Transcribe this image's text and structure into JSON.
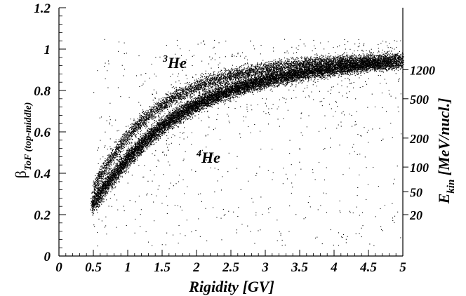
{
  "chart_data": {
    "type": "scatter",
    "xlabel": "Rigidity [GV]",
    "ylabel": {
      "main": "β",
      "sub": "ToF (top-middle)"
    },
    "right_axis_label": {
      "main": "E",
      "sub": "kin",
      "unit": " [MeV/nucl.]"
    },
    "xlim": [
      0,
      5
    ],
    "ylim": [
      0,
      1.2
    ],
    "x_ticks": [
      0,
      0.5,
      1,
      1.5,
      2,
      2.5,
      3,
      3.5,
      4,
      4.5,
      5
    ],
    "x_tick_labels": [
      "0",
      "0.5",
      "1",
      "1.5",
      "2",
      "2.5",
      "3",
      "3.5",
      "4",
      "4.5",
      "5"
    ],
    "y_ticks": [
      0,
      0.2,
      0.4,
      0.6,
      0.8,
      1.0,
      1.2
    ],
    "y_tick_labels": [
      "0",
      "0.2",
      "0.4",
      "0.6",
      "0.8",
      "1",
      "1.2"
    ],
    "right_ticks": [
      {
        "label": "1200",
        "beta": 0.9
      },
      {
        "label": "500",
        "beta": 0.76
      },
      {
        "label": "200",
        "beta": 0.57
      },
      {
        "label": "100",
        "beta": 0.43
      },
      {
        "label": "50",
        "beta": 0.31
      },
      {
        "label": "20",
        "beta": 0.2
      }
    ],
    "grid": false,
    "series": [
      {
        "name": "³He",
        "label_prefix": "3",
        "label_main": "He",
        "label_at": [
          0.55,
          2.15
        ],
        "mass_over_charge": 1.4,
        "x_range": [
          0.5,
          5.0
        ],
        "y_spread": 0.012,
        "points": 5000
      },
      {
        "name": "⁴He",
        "label_prefix": "4",
        "label_main": "He",
        "label_at": [
          0.56,
          2.0
        ],
        "mass_over_charge": 1.86,
        "x_range": [
          0.47,
          5.0
        ],
        "y_spread": 0.014,
        "points": 13000
      }
    ],
    "background": {
      "points": 1200,
      "x_range": [
        0.5,
        5.0
      ],
      "y_range": [
        0.05,
        1.05
      ]
    }
  }
}
